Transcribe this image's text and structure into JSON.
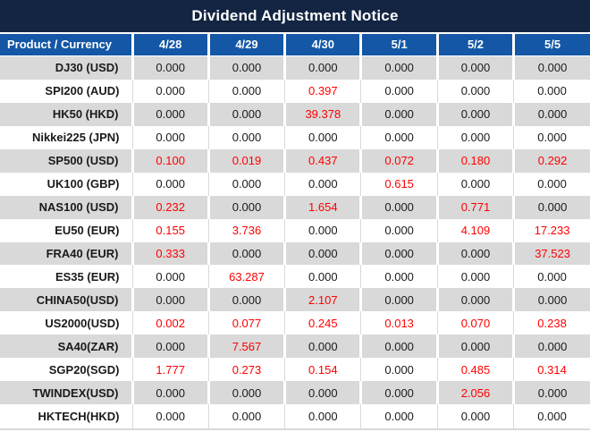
{
  "chart_data": {
    "type": "table",
    "title": "Dividend Adjustment Notice",
    "columns": [
      "Product / Currency",
      "4/28",
      "4/29",
      "4/30",
      "5/1",
      "5/2",
      "5/5"
    ],
    "rows": [
      [
        "DJ30 (USD)",
        0,
        0,
        0,
        0,
        0,
        0
      ],
      [
        "SPI200 (AUD)",
        0,
        0,
        0.397,
        0,
        0,
        0
      ],
      [
        "HK50 (HKD)",
        0,
        0,
        39.378,
        0,
        0,
        0
      ],
      [
        "Nikkei225 (JPN)",
        0,
        0,
        0,
        0,
        0,
        0
      ],
      [
        "SP500 (USD)",
        0.1,
        0.019,
        0.437,
        0.072,
        0.18,
        0.292
      ],
      [
        "UK100 (GBP)",
        0,
        0,
        0,
        0.615,
        0,
        0
      ],
      [
        "NAS100 (USD)",
        0.232,
        0,
        1.654,
        0,
        0.771,
        0
      ],
      [
        "EU50 (EUR)",
        0.155,
        3.736,
        0,
        0,
        4.109,
        17.233
      ],
      [
        "FRA40 (EUR)",
        0.333,
        0,
        0,
        0,
        0,
        37.523
      ],
      [
        "ES35 (EUR)",
        0,
        63.287,
        0,
        0,
        0,
        0
      ],
      [
        "CHINA50(USD)",
        0,
        0,
        2.107,
        0,
        0,
        0
      ],
      [
        "US2000(USD)",
        0.002,
        0.077,
        0.245,
        0.013,
        0.07,
        0.238
      ],
      [
        "SA40(ZAR)",
        0,
        7.567,
        0,
        0,
        0,
        0
      ],
      [
        "SGP20(SGD)",
        1.777,
        0.273,
        0.154,
        0,
        0.485,
        0.314
      ],
      [
        "TWINDEX(USD)",
        0,
        0,
        0,
        0,
        2.056,
        0
      ],
      [
        "HKTECH(HKD)",
        0,
        0,
        0,
        0,
        0,
        0
      ]
    ],
    "value_format": "3 decimal places",
    "zero_display": "0.000",
    "layout": "striped rows, first data row shaded"
  },
  "styles": {
    "title_bar_bg": "#132542",
    "header_bg": "#1457a6",
    "stripe_bg": "#d9d9d9",
    "text_color": "#1a1a1a",
    "nonzero_value_color": "#ff0000"
  }
}
